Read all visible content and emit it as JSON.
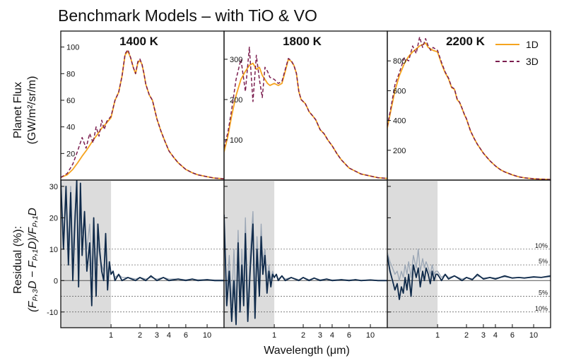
{
  "figure": {
    "title": "Benchmark Models – with TiO & VO",
    "ylabel_top_line1": "Planet Flux",
    "ylabel_top_line2": "(GW/m²/sr/m)",
    "ylabel_bottom_line1": "Residual (%):",
    "ylabel_bottom_line2": "(Fₚ,₃D − Fₚ,₁D)/Fₚ,₁D",
    "xlabel": "Wavelength (μm)"
  },
  "legend": {
    "entries": [
      "1D",
      "3D"
    ]
  },
  "colors": {
    "line_1d": "#f5a41f",
    "line_3d": "#7b1e4f",
    "residual": "#0f2a4a",
    "residual_faint": "#9aa6b5",
    "shade": "#dcdcdc"
  },
  "chart_data": [
    {
      "type": "line",
      "title": "1400 K",
      "xscale": "log",
      "xlim": [
        0.3,
        15
      ],
      "xticks": [
        1,
        2,
        3,
        4,
        6,
        10
      ],
      "ylim": [
        0,
        112
      ],
      "yticks": [
        20,
        40,
        60,
        80,
        100
      ],
      "series": [
        {
          "name": "1D",
          "x": [
            0.3,
            0.35,
            0.4,
            0.45,
            0.5,
            0.55,
            0.6,
            0.65,
            0.7,
            0.75,
            0.8,
            0.85,
            0.9,
            1.0,
            1.1,
            1.2,
            1.3,
            1.4,
            1.5,
            1.6,
            1.7,
            1.8,
            1.9,
            2.0,
            2.1,
            2.2,
            2.3,
            2.5,
            2.7,
            3.0,
            3.3,
            3.6,
            4.0,
            4.5,
            5.0,
            6.0,
            7.0,
            8.0,
            10.0,
            12.0,
            15.0
          ],
          "y": [
            2,
            4,
            8,
            13,
            18,
            22,
            26,
            30,
            33,
            36,
            39,
            41,
            43,
            47,
            60,
            66,
            78,
            94,
            97,
            92,
            85,
            80,
            88,
            90,
            87,
            80,
            72,
            64,
            60,
            46,
            37,
            30,
            22,
            17,
            13,
            8,
            5.5,
            4,
            2.5,
            1.5,
            1
          ]
        },
        {
          "name": "3D",
          "x": [
            0.3,
            0.35,
            0.4,
            0.45,
            0.5,
            0.55,
            0.6,
            0.65,
            0.7,
            0.75,
            0.8,
            0.85,
            0.9,
            1.0,
            1.1,
            1.2,
            1.3,
            1.4,
            1.5,
            1.6,
            1.7,
            1.8,
            1.9,
            2.0,
            2.1,
            2.2,
            2.3,
            2.5,
            2.7,
            3.0,
            3.3,
            3.6,
            4.0,
            4.5,
            5.0,
            6.0,
            7.0,
            8.0,
            10.0,
            12.0,
            15.0
          ],
          "y": [
            2,
            5,
            12,
            22,
            32,
            24,
            35,
            28,
            40,
            33,
            45,
            38,
            44,
            48,
            60,
            66,
            78,
            95,
            98,
            92,
            85,
            80,
            89,
            91,
            87,
            80,
            72,
            64,
            60,
            46,
            37,
            30,
            22,
            17,
            13,
            8,
            5.5,
            4,
            2.5,
            1.5,
            1
          ]
        }
      ],
      "residual": {
        "ylim": [
          -15,
          32
        ],
        "yticks": [
          -10,
          0,
          10,
          20,
          30
        ],
        "shaded_xrange": [
          0.3,
          1.0
        ],
        "reference_lines": [
          10,
          5,
          0,
          -5,
          -10
        ],
        "x": [
          0.3,
          0.32,
          0.34,
          0.36,
          0.38,
          0.4,
          0.42,
          0.44,
          0.46,
          0.48,
          0.5,
          0.53,
          0.56,
          0.6,
          0.63,
          0.66,
          0.7,
          0.73,
          0.76,
          0.8,
          0.84,
          0.88,
          0.92,
          0.96,
          1.0,
          1.05,
          1.1,
          1.2,
          1.3,
          1.5,
          1.8,
          2.0,
          2.3,
          2.6,
          3.0,
          3.5,
          4.0,
          5.0,
          6.0,
          7.0,
          8.0,
          10.0,
          12.0,
          15.0
        ],
        "values": [
          32,
          10,
          30,
          5,
          28,
          0,
          18,
          32,
          -2,
          31,
          8,
          22,
          3,
          12,
          -8,
          20,
          -5,
          18,
          10,
          3,
          0,
          15,
          -3,
          6,
          2,
          3,
          0,
          2,
          0,
          1,
          0,
          1,
          0,
          1.5,
          0,
          1,
          0,
          0.5,
          0,
          0.5,
          0,
          0.3,
          0,
          0
        ],
        "faint_values": [
          28,
          15,
          25,
          12,
          30,
          8,
          22,
          28,
          8,
          25,
          15,
          20,
          10,
          18,
          2,
          15,
          5,
          12,
          8,
          5,
          3,
          10,
          2,
          5,
          2,
          3,
          1,
          2,
          1,
          1,
          0.5,
          1,
          0.5,
          1,
          0.5,
          1,
          0.5,
          0.5,
          0.3,
          0.5,
          0.3,
          0.3,
          0.2,
          0.2
        ]
      }
    },
    {
      "type": "line",
      "title": "1800 K",
      "xscale": "log",
      "xlim": [
        0.3,
        15
      ],
      "xticks": [
        1,
        2,
        3,
        4,
        6,
        10
      ],
      "ylim": [
        0,
        370
      ],
      "yticks": [
        100,
        200,
        300
      ],
      "series": [
        {
          "name": "1D",
          "x": [
            0.3,
            0.33,
            0.36,
            0.4,
            0.45,
            0.5,
            0.55,
            0.6,
            0.65,
            0.7,
            0.75,
            0.8,
            0.85,
            0.9,
            1.0,
            1.1,
            1.2,
            1.3,
            1.4,
            1.5,
            1.6,
            1.7,
            1.8,
            1.9,
            2.0,
            2.1,
            2.2,
            2.3,
            2.5,
            2.7,
            3.0,
            3.3,
            3.6,
            4.0,
            4.5,
            5.0,
            6.0,
            7.0,
            8.0,
            10.0,
            12.0,
            15.0
          ],
          "y": [
            70,
            110,
            160,
            210,
            250,
            270,
            285,
            290,
            275,
            280,
            260,
            250,
            240,
            235,
            240,
            235,
            240,
            270,
            300,
            295,
            285,
            265,
            220,
            200,
            195,
            190,
            180,
            170,
            160,
            150,
            125,
            115,
            100,
            85,
            65,
            50,
            30,
            22,
            15,
            10,
            6,
            4
          ]
        },
        {
          "name": "3D",
          "x": [
            0.3,
            0.33,
            0.36,
            0.4,
            0.45,
            0.5,
            0.55,
            0.6,
            0.65,
            0.7,
            0.75,
            0.8,
            0.85,
            0.9,
            1.0,
            1.1,
            1.2,
            1.3,
            1.4,
            1.5,
            1.6,
            1.7,
            1.8,
            1.9,
            2.0,
            2.1,
            2.2,
            2.3,
            2.5,
            2.7,
            3.0,
            3.3,
            3.6,
            4.0,
            4.5,
            5.0,
            6.0,
            7.0,
            8.0,
            10.0,
            12.0,
            15.0
          ],
          "y": [
            80,
            120,
            175,
            250,
            300,
            220,
            330,
            195,
            310,
            250,
            205,
            280,
            270,
            255,
            250,
            240,
            245,
            275,
            302,
            297,
            285,
            265,
            220,
            200,
            195,
            190,
            180,
            170,
            160,
            150,
            125,
            115,
            100,
            85,
            65,
            50,
            30,
            22,
            15,
            10,
            6,
            4
          ]
        }
      ],
      "residual": {
        "ylim": [
          -15,
          32
        ],
        "yticks": [
          -10,
          0,
          10,
          20,
          30
        ],
        "shaded_xrange": [
          0.3,
          1.0
        ],
        "reference_lines": [
          10,
          5,
          0,
          -5,
          -10
        ],
        "x": [
          0.3,
          0.32,
          0.34,
          0.36,
          0.38,
          0.4,
          0.42,
          0.44,
          0.46,
          0.48,
          0.5,
          0.53,
          0.56,
          0.6,
          0.63,
          0.66,
          0.7,
          0.73,
          0.76,
          0.8,
          0.84,
          0.88,
          0.92,
          0.96,
          1.0,
          1.05,
          1.1,
          1.2,
          1.3,
          1.5,
          1.8,
          2.0,
          2.3,
          2.6,
          3.0,
          3.5,
          4.0,
          5.0,
          6.0,
          7.0,
          8.0,
          10.0,
          12.0,
          15.0
        ],
        "values": [
          21,
          -8,
          3,
          -13,
          0,
          -14,
          12,
          -10,
          5,
          -8,
          15,
          -13,
          3,
          18,
          -12,
          10,
          -5,
          14,
          2,
          8,
          -4,
          3,
          -2,
          2,
          1,
          2,
          0,
          1.5,
          0,
          1,
          0,
          1,
          0,
          0.8,
          0,
          0.5,
          0,
          0.3,
          0,
          0.3,
          0,
          0.2,
          0,
          0
        ],
        "faint_values": [
          19,
          -4,
          8,
          -8,
          10,
          -10,
          16,
          -6,
          10,
          -4,
          20,
          -8,
          8,
          22,
          -6,
          14,
          0,
          18,
          6,
          10,
          0,
          5,
          0,
          3,
          1,
          2,
          0.5,
          1.5,
          0.5,
          1,
          0.3,
          1,
          0.3,
          0.8,
          0.3,
          0.5,
          0.2,
          0.3,
          0.2,
          0.3,
          0.1,
          0.2,
          0.1,
          0.1
        ]
      }
    },
    {
      "type": "line",
      "title": "2200 K",
      "xscale": "log",
      "xlim": [
        0.3,
        15
      ],
      "xticks": [
        1,
        2,
        3,
        4,
        6,
        10
      ],
      "ylim": [
        0,
        1000
      ],
      "yticks": [
        200,
        400,
        600,
        800
      ],
      "series": [
        {
          "name": "1D",
          "x": [
            0.3,
            0.33,
            0.36,
            0.4,
            0.45,
            0.5,
            0.55,
            0.6,
            0.65,
            0.7,
            0.75,
            0.8,
            0.85,
            0.9,
            1.0,
            1.1,
            1.2,
            1.3,
            1.4,
            1.5,
            1.6,
            1.7,
            1.8,
            1.9,
            2.0,
            2.2,
            2.4,
            2.6,
            3.0,
            3.5,
            4.0,
            4.5,
            5.0,
            6.0,
            7.0,
            8.0,
            10.0,
            12.0,
            15.0
          ],
          "y": [
            350,
            480,
            600,
            700,
            780,
            830,
            860,
            880,
            900,
            910,
            920,
            890,
            880,
            870,
            860,
            780,
            720,
            680,
            620,
            610,
            540,
            520,
            480,
            440,
            410,
            330,
            280,
            240,
            180,
            130,
            95,
            70,
            55,
            35,
            22,
            15,
            9,
            6,
            4
          ]
        },
        {
          "name": "3D",
          "x": [
            0.3,
            0.33,
            0.36,
            0.4,
            0.45,
            0.5,
            0.55,
            0.6,
            0.65,
            0.7,
            0.75,
            0.8,
            0.85,
            0.9,
            1.0,
            1.1,
            1.2,
            1.3,
            1.4,
            1.5,
            1.6,
            1.7,
            1.8,
            1.9,
            2.0,
            2.2,
            2.4,
            2.6,
            3.0,
            3.5,
            4.0,
            4.5,
            5.0,
            6.0,
            7.0,
            8.0,
            10.0,
            12.0,
            15.0
          ],
          "y": [
            360,
            500,
            640,
            720,
            820,
            800,
            900,
            850,
            960,
            890,
            950,
            900,
            870,
            890,
            870,
            790,
            725,
            685,
            625,
            612,
            545,
            522,
            482,
            442,
            412,
            330,
            280,
            240,
            180,
            130,
            95,
            70,
            55,
            35,
            22,
            15,
            9,
            6,
            4
          ]
        }
      ],
      "residual": {
        "ylim": [
          -15,
          32
        ],
        "yticks": [
          -10,
          0,
          10,
          20,
          30
        ],
        "shaded_xrange": [
          0.3,
          1.0
        ],
        "reference_lines": [
          10,
          5,
          0,
          -5,
          -10
        ],
        "x": [
          0.3,
          0.32,
          0.34,
          0.36,
          0.38,
          0.4,
          0.42,
          0.44,
          0.46,
          0.48,
          0.5,
          0.53,
          0.56,
          0.6,
          0.63,
          0.66,
          0.7,
          0.73,
          0.76,
          0.8,
          0.84,
          0.88,
          0.92,
          0.96,
          1.0,
          1.05,
          1.1,
          1.2,
          1.3,
          1.5,
          1.8,
          2.0,
          2.3,
          2.6,
          3.0,
          3.5,
          4.0,
          5.0,
          6.0,
          7.0,
          8.0,
          10.0,
          12.0,
          15.0
        ],
        "values": [
          8,
          3,
          0,
          -3,
          -1,
          -6,
          -2,
          -4,
          1,
          -3,
          2,
          -5,
          5,
          1,
          4,
          -2,
          3,
          0,
          4,
          2,
          -1,
          3,
          0,
          2,
          2,
          1,
          0,
          2,
          0.5,
          1.5,
          0,
          1,
          0.3,
          2,
          0.5,
          1,
          0.5,
          1.5,
          0.8,
          1,
          0.8,
          1.2,
          1,
          1.5
        ],
        "faint_values": [
          9,
          6,
          4,
          2,
          3,
          0,
          3,
          1,
          5,
          2,
          6,
          1,
          8,
          4,
          10,
          3,
          7,
          4,
          6,
          4,
          2,
          5,
          2,
          3,
          3,
          2,
          1,
          2,
          1,
          1.5,
          0.5,
          1,
          0.5,
          1.5,
          0.8,
          1,
          0.8,
          1.2,
          0.8,
          1,
          0.8,
          1,
          1,
          1.2
        ]
      }
    }
  ]
}
